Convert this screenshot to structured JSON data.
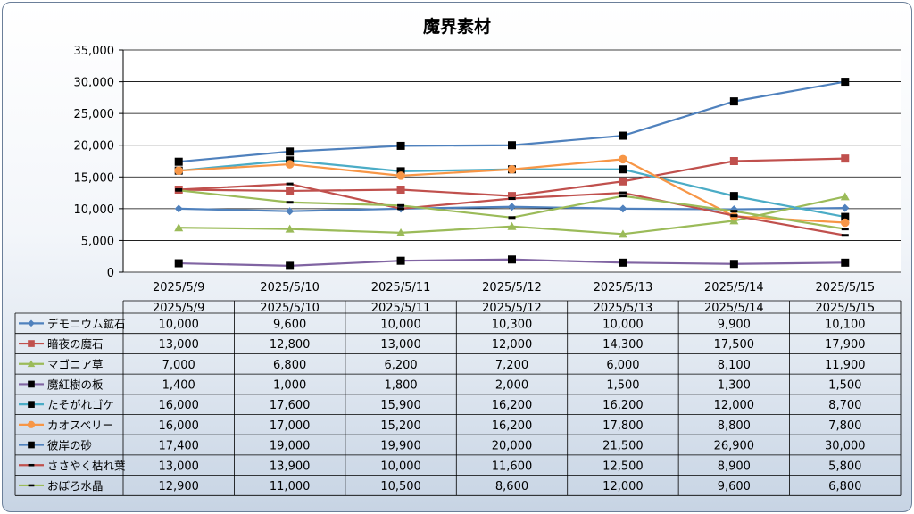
{
  "chart_data": {
    "type": "line",
    "title": "魔界素材",
    "categories": [
      "2025/5/9",
      "2025/5/10",
      "2025/5/11",
      "2025/5/12",
      "2025/5/13",
      "2025/5/14",
      "2025/5/15"
    ],
    "ylim": [
      0,
      35000
    ],
    "yticks": [
      "0",
      "5,000",
      "10,000",
      "15,000",
      "20,000",
      "25,000",
      "30,000",
      "35,000"
    ],
    "grid": true,
    "legend": "data-table",
    "series": [
      {
        "name": "デモニウム鉱石",
        "color": "#4f81bd",
        "marker": "diamond",
        "values": [
          10000,
          9600,
          10000,
          10300,
          10000,
          9900,
          10100
        ],
        "labels": [
          "10,000",
          "9,600",
          "10,000",
          "10,300",
          "10,000",
          "9,900",
          "10,100"
        ]
      },
      {
        "name": "暗夜の魔石",
        "color": "#c0504d",
        "marker": "square",
        "values": [
          13000,
          12800,
          13000,
          12000,
          14300,
          17500,
          17900
        ],
        "labels": [
          "13,000",
          "12,800",
          "13,000",
          "12,000",
          "14,300",
          "17,500",
          "17,900"
        ]
      },
      {
        "name": "マゴニア草",
        "color": "#9bbb59",
        "marker": "triangle",
        "values": [
          7000,
          6800,
          6200,
          7200,
          6000,
          8100,
          11900
        ],
        "labels": [
          "7,000",
          "6,800",
          "6,200",
          "7,200",
          "6,000",
          "8,100",
          "11,900"
        ]
      },
      {
        "name": "魔紅樹の板",
        "color": "#8064a2",
        "marker": "blacksquare",
        "values": [
          1400,
          1000,
          1800,
          2000,
          1500,
          1300,
          1500
        ],
        "labels": [
          "1,400",
          "1,000",
          "1,800",
          "2,000",
          "1,500",
          "1,300",
          "1,500"
        ]
      },
      {
        "name": "たそがれゴケ",
        "color": "#4bacc6",
        "marker": "blacksquare",
        "values": [
          16000,
          17600,
          15900,
          16200,
          16200,
          12000,
          8700
        ],
        "labels": [
          "16,000",
          "17,600",
          "15,900",
          "16,200",
          "16,200",
          "12,000",
          "8,700"
        ]
      },
      {
        "name": "カオスベリー",
        "color": "#f79646",
        "marker": "circle",
        "values": [
          16000,
          17000,
          15200,
          16200,
          17800,
          8800,
          7800
        ],
        "labels": [
          "16,000",
          "17,000",
          "15,200",
          "16,200",
          "17,800",
          "8,800",
          "7,800"
        ]
      },
      {
        "name": "彼岸の砂",
        "color": "#4f81bd",
        "marker": "blacksquare",
        "values": [
          17400,
          19000,
          19900,
          20000,
          21500,
          26900,
          30000
        ],
        "labels": [
          "17,400",
          "19,000",
          "19,900",
          "20,000",
          "21,500",
          "26,900",
          "30,000"
        ]
      },
      {
        "name": "ささやく枯れ葉",
        "color": "#c0504d",
        "marker": "dash",
        "values": [
          13000,
          13900,
          10000,
          11600,
          12500,
          8900,
          5800
        ],
        "labels": [
          "13,000",
          "13,900",
          "10,000",
          "11,600",
          "12,500",
          "8,900",
          "5,800"
        ]
      },
      {
        "name": "おぼろ水晶",
        "color": "#9bbb59",
        "marker": "dash",
        "values": [
          12900,
          11000,
          10500,
          8600,
          12000,
          9600,
          6800
        ],
        "labels": [
          "12,900",
          "11,000",
          "10,500",
          "8,600",
          "12,000",
          "9,600",
          "6,800"
        ]
      }
    ]
  }
}
